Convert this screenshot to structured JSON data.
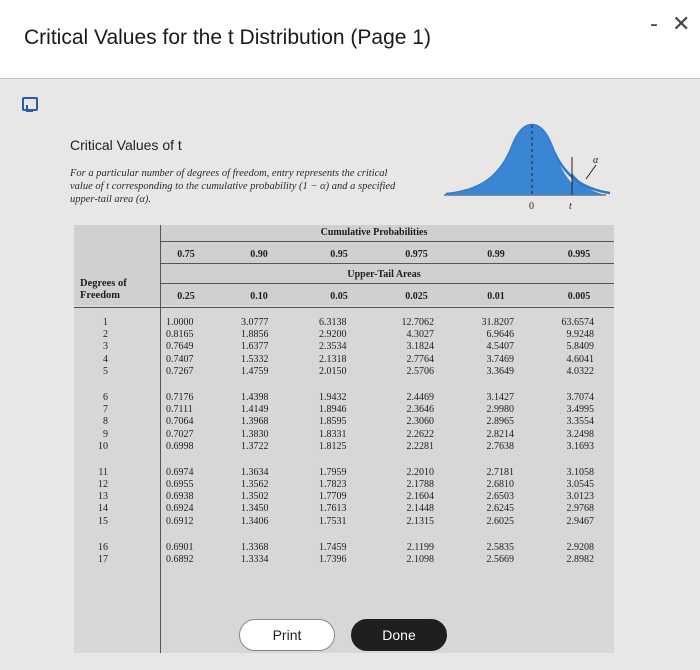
{
  "window": {
    "title": "Critical Values for the t Distribution (Page 1)",
    "minimize": "-",
    "close": "✕"
  },
  "panel": {
    "heading": "Critical Values of t",
    "description": "For a particular number of degrees of freedom, entry represents the critical value of t corresponding to the cumulative probability (1 − α) and a specified upper-tail area (α).",
    "curve_labels": {
      "zero": "0",
      "t": "t",
      "alpha": "α"
    }
  },
  "table": {
    "cumulative_title": "Cumulative Probabilities",
    "upper_tail_title": "Upper-Tail Areas",
    "df_label_line1": "Degrees of",
    "df_label_line2": "Freedom",
    "cumulative": [
      "0.75",
      "0.90",
      "0.95",
      "0.975",
      "0.99",
      "0.995"
    ],
    "upper_tail": [
      "0.25",
      "0.10",
      "0.05",
      "0.025",
      "0.01",
      "0.005"
    ],
    "df": [
      [
        "1",
        "2",
        "3",
        "4",
        "5"
      ],
      [
        "6",
        "7",
        "8",
        "9",
        "10"
      ],
      [
        "11",
        "12",
        "13",
        "14",
        "15"
      ],
      [
        "16",
        "17"
      ]
    ],
    "columns": [
      [
        [
          "1.0000",
          "0.8165",
          "0.7649",
          "0.7407",
          "0.7267"
        ],
        [
          "0.7176",
          "0.7111",
          "0.7064",
          "0.7027",
          "0.6998"
        ],
        [
          "0.6974",
          "0.6955",
          "0.6938",
          "0.6924",
          "0.6912"
        ],
        [
          "0.6901",
          "0.6892"
        ]
      ],
      [
        [
          "3.0777",
          "1.8856",
          "1.6377",
          "1.5332",
          "1.4759"
        ],
        [
          "1.4398",
          "1.4149",
          "1.3968",
          "1.3830",
          "1.3722"
        ],
        [
          "1.3634",
          "1.3562",
          "1.3502",
          "1.3450",
          "1.3406"
        ],
        [
          "1.3368",
          "1.3334"
        ]
      ],
      [
        [
          "6.3138",
          "2.9200",
          "2.3534",
          "2.1318",
          "2.0150"
        ],
        [
          "1.9432",
          "1.8946",
          "1.8595",
          "1.8331",
          "1.8125"
        ],
        [
          "1.7959",
          "1.7823",
          "1.7709",
          "1.7613",
          "1.7531"
        ],
        [
          "1.7459",
          "1.7396"
        ]
      ],
      [
        [
          "12.7062",
          "4.3027",
          "3.1824",
          "2.7764",
          "2.5706"
        ],
        [
          "2.4469",
          "2.3646",
          "2.3060",
          "2.2622",
          "2.2281"
        ],
        [
          "2.2010",
          "2.1788",
          "2.1604",
          "2.1448",
          "2.1315"
        ],
        [
          "2.1199",
          "2.1098"
        ]
      ],
      [
        [
          "31.8207",
          "6.9646",
          "4.5407",
          "3.7469",
          "3.3649"
        ],
        [
          "3.1427",
          "2.9980",
          "2.8965",
          "2.8214",
          "2.7638"
        ],
        [
          "2.7181",
          "2.6810",
          "2.6503",
          "2.6245",
          "2.6025"
        ],
        [
          "2.5835",
          "2.5669"
        ]
      ],
      [
        [
          "63.6574",
          "9.9248",
          "5.8409",
          "4.6041",
          "4.0322"
        ],
        [
          "3.7074",
          "3.4995",
          "3.3554",
          "3.2498",
          "3.1693"
        ],
        [
          "3.1058",
          "3.0545",
          "3.0123",
          "2.9768",
          "2.9467"
        ],
        [
          "2.9208",
          "2.8982"
        ]
      ]
    ]
  },
  "buttons": {
    "print": "Print",
    "done": "Done"
  }
}
